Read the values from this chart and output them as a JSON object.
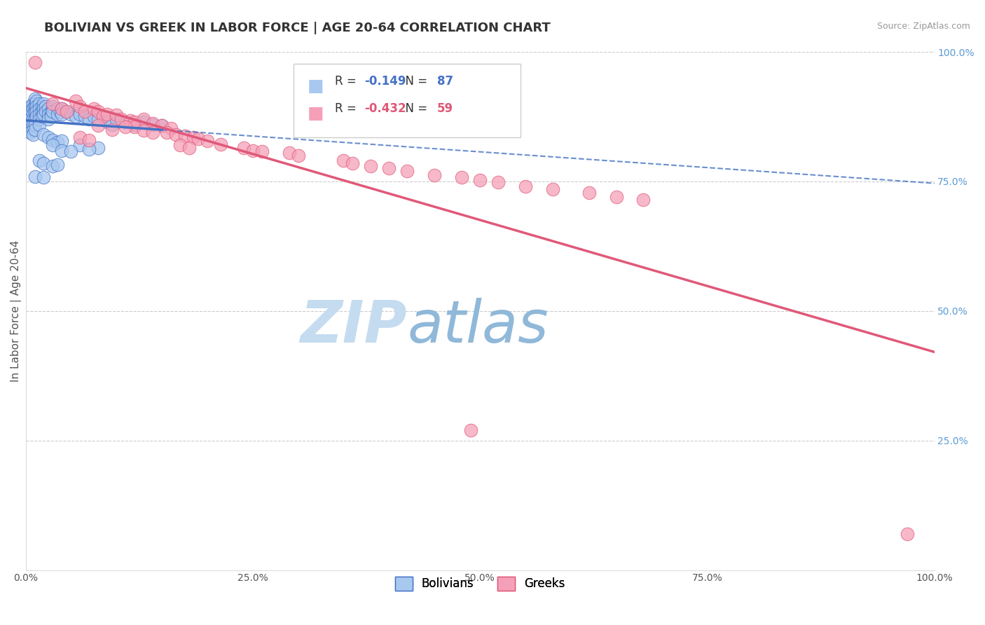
{
  "title": "BOLIVIAN VS GREEK IN LABOR FORCE | AGE 20-64 CORRELATION CHART",
  "source": "Source: ZipAtlas.com",
  "ylabel": "In Labor Force | Age 20-64",
  "xlim": [
    0,
    1.0
  ],
  "ylim": [
    0,
    1.0
  ],
  "blue_R": -0.149,
  "blue_N": 87,
  "pink_R": -0.432,
  "pink_N": 59,
  "blue_color": "#A8C8F0",
  "pink_color": "#F5A0B8",
  "blue_line_color": "#4472C4",
  "pink_line_color": "#E05878",
  "grid_color": "#CCCCCC",
  "legend_label_blue": "Bolivians",
  "legend_label_pink": "Greeks",
  "blue_dots": [
    [
      0.005,
      0.895
    ],
    [
      0.005,
      0.885
    ],
    [
      0.005,
      0.875
    ],
    [
      0.005,
      0.865
    ],
    [
      0.005,
      0.855
    ],
    [
      0.005,
      0.845
    ],
    [
      0.005,
      0.88
    ],
    [
      0.005,
      0.87
    ],
    [
      0.008,
      0.9
    ],
    [
      0.008,
      0.89
    ],
    [
      0.008,
      0.88
    ],
    [
      0.008,
      0.87
    ],
    [
      0.008,
      0.86
    ],
    [
      0.008,
      0.85
    ],
    [
      0.008,
      0.84
    ],
    [
      0.01,
      0.91
    ],
    [
      0.01,
      0.9
    ],
    [
      0.01,
      0.89
    ],
    [
      0.01,
      0.88
    ],
    [
      0.01,
      0.87
    ],
    [
      0.01,
      0.86
    ],
    [
      0.01,
      0.85
    ],
    [
      0.01,
      0.895
    ],
    [
      0.01,
      0.885
    ],
    [
      0.012,
      0.905
    ],
    [
      0.012,
      0.895
    ],
    [
      0.012,
      0.885
    ],
    [
      0.012,
      0.875
    ],
    [
      0.015,
      0.9
    ],
    [
      0.015,
      0.89
    ],
    [
      0.015,
      0.88
    ],
    [
      0.015,
      0.87
    ],
    [
      0.015,
      0.86
    ],
    [
      0.018,
      0.895
    ],
    [
      0.018,
      0.885
    ],
    [
      0.018,
      0.875
    ],
    [
      0.02,
      0.9
    ],
    [
      0.02,
      0.89
    ],
    [
      0.02,
      0.88
    ],
    [
      0.022,
      0.895
    ],
    [
      0.022,
      0.885
    ],
    [
      0.025,
      0.89
    ],
    [
      0.025,
      0.88
    ],
    [
      0.025,
      0.87
    ],
    [
      0.028,
      0.885
    ],
    [
      0.028,
      0.875
    ],
    [
      0.03,
      0.895
    ],
    [
      0.03,
      0.885
    ],
    [
      0.035,
      0.89
    ],
    [
      0.035,
      0.88
    ],
    [
      0.038,
      0.885
    ],
    [
      0.04,
      0.89
    ],
    [
      0.04,
      0.88
    ],
    [
      0.045,
      0.885
    ],
    [
      0.05,
      0.88
    ],
    [
      0.055,
      0.875
    ],
    [
      0.06,
      0.88
    ],
    [
      0.065,
      0.875
    ],
    [
      0.07,
      0.87
    ],
    [
      0.075,
      0.875
    ],
    [
      0.08,
      0.87
    ],
    [
      0.09,
      0.865
    ],
    [
      0.095,
      0.86
    ],
    [
      0.1,
      0.87
    ],
    [
      0.11,
      0.865
    ],
    [
      0.12,
      0.86
    ],
    [
      0.13,
      0.865
    ],
    [
      0.14,
      0.86
    ],
    [
      0.15,
      0.858
    ],
    [
      0.02,
      0.84
    ],
    [
      0.025,
      0.835
    ],
    [
      0.03,
      0.83
    ],
    [
      0.035,
      0.825
    ],
    [
      0.04,
      0.828
    ],
    [
      0.03,
      0.82
    ],
    [
      0.06,
      0.82
    ],
    [
      0.08,
      0.815
    ],
    [
      0.04,
      0.81
    ],
    [
      0.05,
      0.808
    ],
    [
      0.07,
      0.812
    ],
    [
      0.015,
      0.79
    ],
    [
      0.02,
      0.785
    ],
    [
      0.03,
      0.78
    ],
    [
      0.035,
      0.782
    ],
    [
      0.01,
      0.76
    ],
    [
      0.02,
      0.758
    ]
  ],
  "pink_dots": [
    [
      0.01,
      0.98
    ],
    [
      0.03,
      0.9
    ],
    [
      0.04,
      0.89
    ],
    [
      0.045,
      0.885
    ],
    [
      0.055,
      0.905
    ],
    [
      0.06,
      0.895
    ],
    [
      0.065,
      0.885
    ],
    [
      0.075,
      0.89
    ],
    [
      0.08,
      0.885
    ],
    [
      0.085,
      0.875
    ],
    [
      0.09,
      0.88
    ],
    [
      0.1,
      0.878
    ],
    [
      0.105,
      0.87
    ],
    [
      0.115,
      0.868
    ],
    [
      0.12,
      0.865
    ],
    [
      0.13,
      0.87
    ],
    [
      0.14,
      0.862
    ],
    [
      0.15,
      0.858
    ],
    [
      0.16,
      0.852
    ],
    [
      0.12,
      0.855
    ],
    [
      0.13,
      0.848
    ],
    [
      0.14,
      0.845
    ],
    [
      0.08,
      0.858
    ],
    [
      0.095,
      0.85
    ],
    [
      0.11,
      0.855
    ],
    [
      0.155,
      0.845
    ],
    [
      0.165,
      0.84
    ],
    [
      0.175,
      0.838
    ],
    [
      0.185,
      0.835
    ],
    [
      0.19,
      0.832
    ],
    [
      0.2,
      0.828
    ],
    [
      0.215,
      0.822
    ],
    [
      0.24,
      0.815
    ],
    [
      0.17,
      0.82
    ],
    [
      0.18,
      0.815
    ],
    [
      0.06,
      0.835
    ],
    [
      0.07,
      0.83
    ],
    [
      0.25,
      0.81
    ],
    [
      0.26,
      0.808
    ],
    [
      0.29,
      0.805
    ],
    [
      0.3,
      0.8
    ],
    [
      0.35,
      0.79
    ],
    [
      0.36,
      0.785
    ],
    [
      0.38,
      0.78
    ],
    [
      0.4,
      0.775
    ],
    [
      0.42,
      0.77
    ],
    [
      0.45,
      0.762
    ],
    [
      0.48,
      0.758
    ],
    [
      0.5,
      0.752
    ],
    [
      0.52,
      0.748
    ],
    [
      0.55,
      0.74
    ],
    [
      0.58,
      0.735
    ],
    [
      0.62,
      0.728
    ],
    [
      0.65,
      0.72
    ],
    [
      0.68,
      0.715
    ],
    [
      0.49,
      0.27
    ],
    [
      0.97,
      0.07
    ]
  ]
}
